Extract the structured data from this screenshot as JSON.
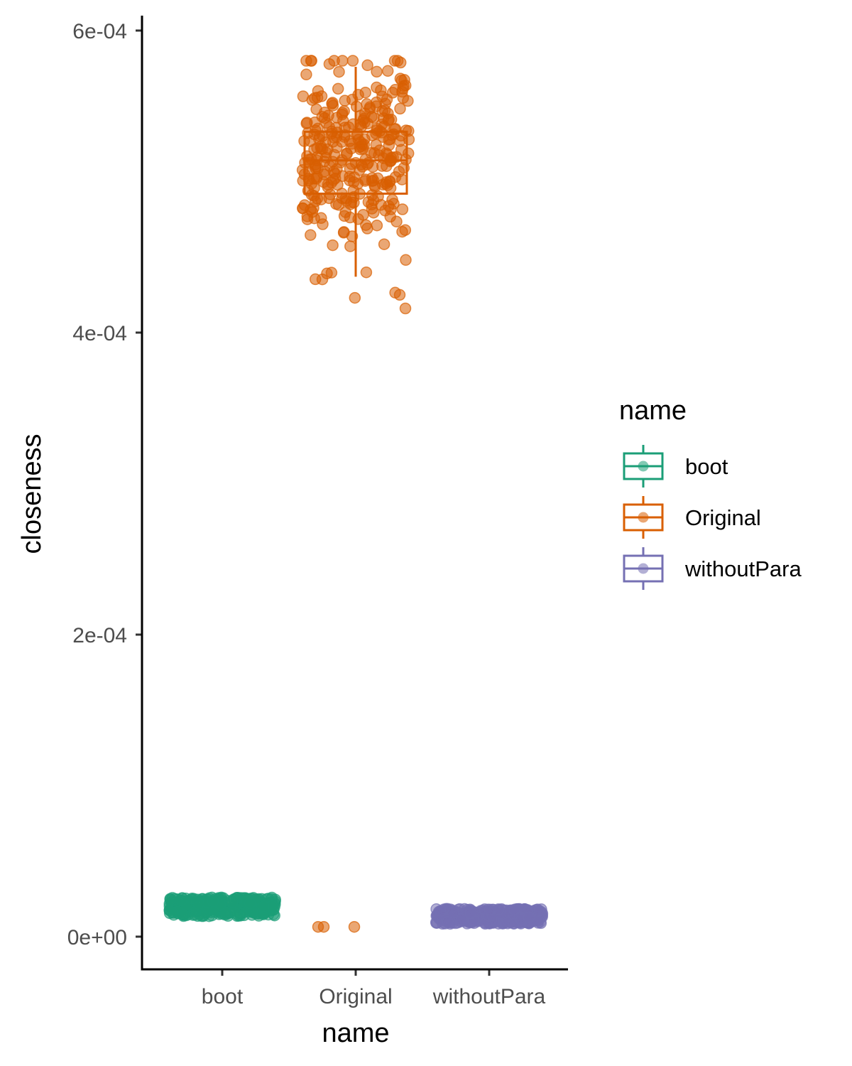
{
  "chart_data": {
    "type": "box+jitter",
    "xlabel": "name",
    "ylabel": "closeness",
    "categories": [
      "boot",
      "Original",
      "withoutPara"
    ],
    "y_ticks": [
      0,
      0.0002,
      0.0004,
      0.0006
    ],
    "y_tick_labels": [
      "0e+00",
      "2e-04",
      "4e-04",
      "6e-04"
    ],
    "ylim": [
      -2e-05,
      0.00062
    ],
    "grid": false,
    "legend": {
      "title": "name",
      "position": "right",
      "entries": [
        "boot",
        "Original",
        "withoutPara"
      ]
    },
    "series": [
      {
        "name": "boot",
        "color": "#1B9E77",
        "box": {
          "min": 1.45e-05,
          "q1": 1.85e-05,
          "median": 2e-05,
          "q3": 2.15e-05,
          "max": 2.55e-05
        },
        "jitter": {
          "count": 350,
          "y_min": 1.35e-05,
          "y_max": 2.6e-05
        },
        "outliers": []
      },
      {
        "name": "Original",
        "color": "#D95F02",
        "box": {
          "min": 0.000437,
          "q1": 0.000492,
          "median": 0.000514,
          "q3": 0.000533,
          "max": 0.000576
        },
        "jitter": {
          "count": 320,
          "y_min": 0.000423,
          "y_max": 0.00058
        },
        "outliers": [
          6.5e-06,
          6.5e-06,
          6.5e-06,
          0.000416
        ]
      },
      {
        "name": "withoutPara",
        "color": "#7570B3",
        "box": {
          "min": 8.5e-06,
          "q1": 1.15e-05,
          "median": 1.35e-05,
          "q3": 1.55e-05,
          "max": 1.85e-05
        },
        "jitter": {
          "count": 350,
          "y_min": 8.5e-06,
          "y_max": 1.85e-05
        },
        "outliers": []
      }
    ]
  }
}
